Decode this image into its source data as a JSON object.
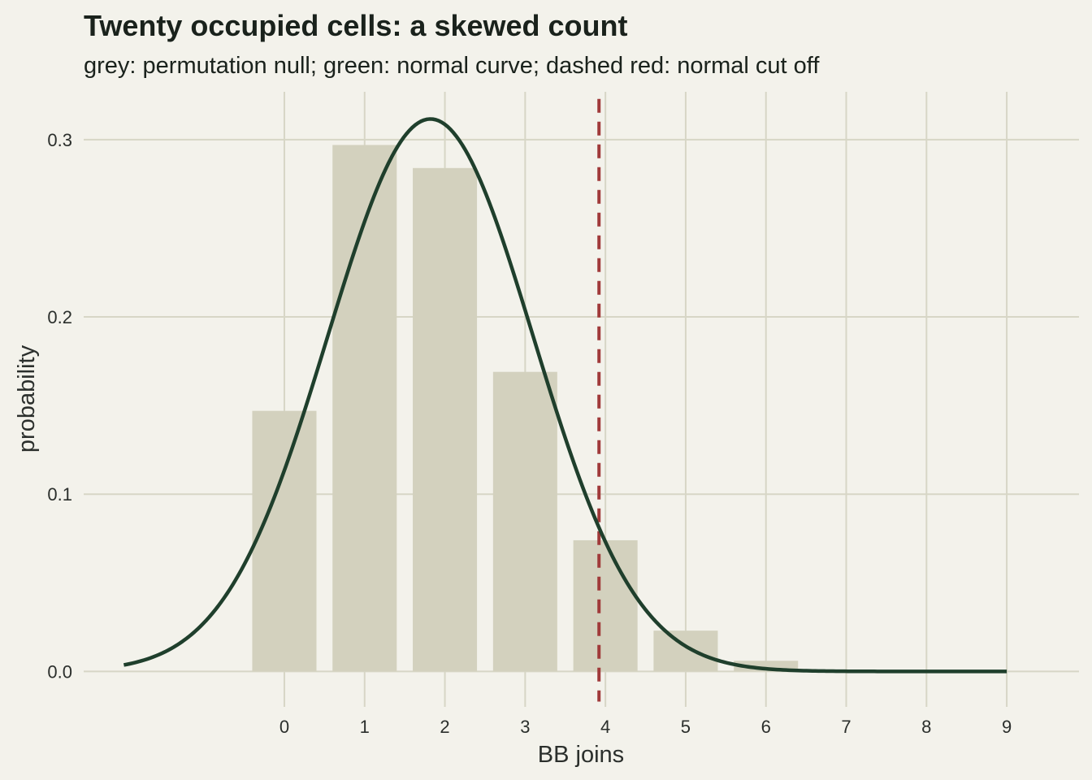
{
  "chart_data": {
    "type": "bar",
    "title": "Twenty occupied cells: a skewed count",
    "subtitle": "grey: permutation null; green: normal curve; dashed red: normal cut off",
    "xlabel": "BB joins",
    "ylabel": "probability",
    "categories": [
      0,
      1,
      2,
      3,
      4,
      5,
      6,
      7,
      8,
      9
    ],
    "series": [
      {
        "values": [
          0.147,
          0.297,
          0.284,
          0.169,
          0.074,
          0.023,
          0.006,
          0.0005,
          0.0,
          0.0
        ]
      }
    ],
    "normal_curve": {
      "mean": 1.82,
      "sd": 1.28,
      "x_start": -2.0,
      "x_end": 9.0
    },
    "cutoff": 3.92,
    "xlim": [
      -2.5,
      9.9
    ],
    "ylim": [
      -0.02,
      0.327
    ],
    "x_ticks": [
      0,
      1,
      2,
      3,
      4,
      5,
      6,
      7,
      8,
      9
    ],
    "y_ticks": [
      0.0,
      0.1,
      0.2,
      0.3
    ],
    "y_tick_labels": [
      "0.0",
      "0.1",
      "0.2",
      "0.3"
    ],
    "grid": true,
    "legend": "none",
    "colors": {
      "bar": "#d3d1be",
      "curve": "#1f3f2c",
      "cutoff": "#a03a3a",
      "grid": "#d7d6c6",
      "background": "#f3f2eb"
    }
  }
}
